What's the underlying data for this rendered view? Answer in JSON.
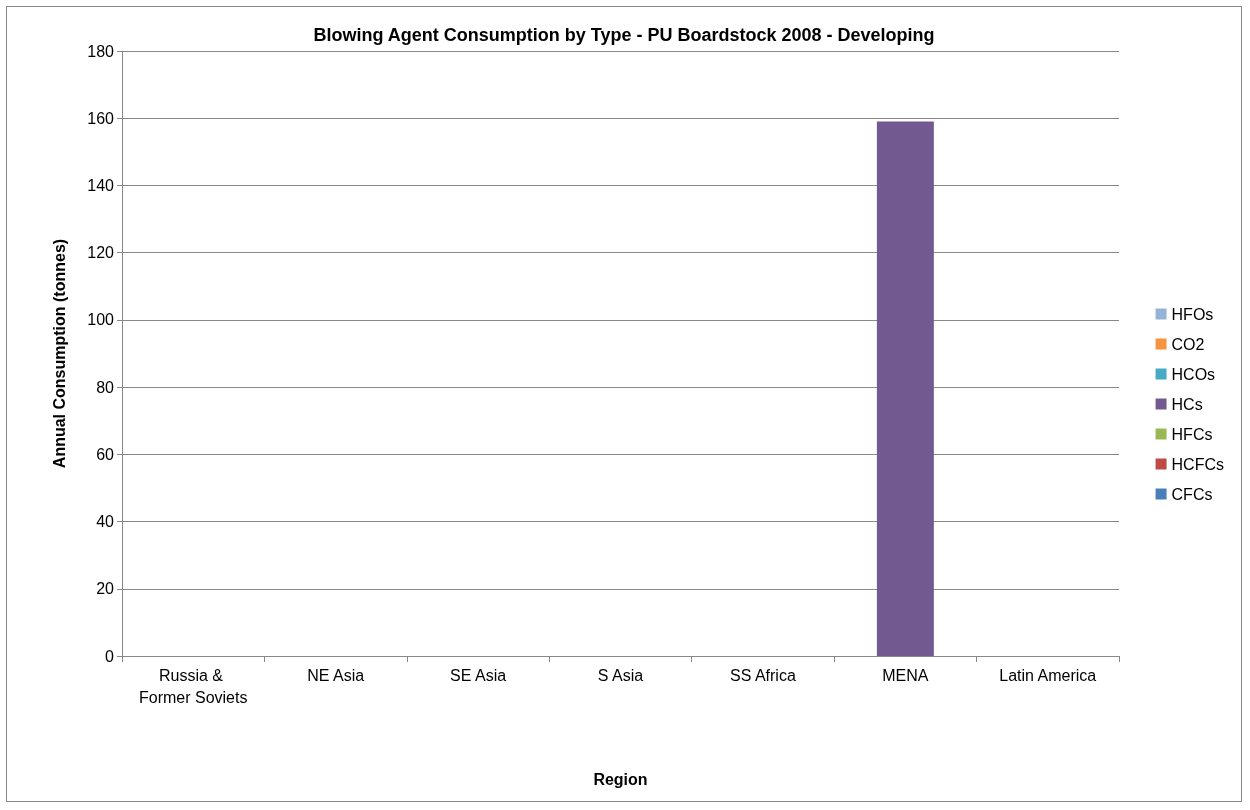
{
  "chart_data": {
    "type": "bar",
    "title": "Blowing Agent Consumption by Type - PU Boardstock 2008 - Developing",
    "xlabel": "Region",
    "ylabel": "Annual Consumption (tonnes)",
    "categories": [
      "Russia & Former Soviets",
      "NE Asia",
      "SE Asia",
      "S Asia",
      "SS Africa",
      "MENA",
      "Latin America"
    ],
    "stacked": true,
    "ylim": [
      0,
      180
    ],
    "yticks": [
      0,
      20,
      40,
      60,
      80,
      100,
      120,
      140,
      160,
      180
    ],
    "grid": "y",
    "legend": "right",
    "series": [
      {
        "name": "CFCs",
        "color": "#4a7ebb",
        "values": [
          0,
          0,
          0,
          0,
          0,
          0,
          0
        ]
      },
      {
        "name": "HCFCs",
        "color": "#be4b48",
        "values": [
          0,
          0,
          0,
          0,
          0,
          0,
          0
        ]
      },
      {
        "name": "HFCs",
        "color": "#98b954",
        "values": [
          0,
          0,
          0,
          0,
          0,
          0,
          0
        ]
      },
      {
        "name": "HCs",
        "color": "#72598f",
        "values": [
          0,
          0,
          0,
          0,
          0,
          159,
          0
        ]
      },
      {
        "name": "HCOs",
        "color": "#46aac5",
        "values": [
          0,
          0,
          0,
          0,
          0,
          0,
          0
        ]
      },
      {
        "name": "CO2",
        "color": "#f69240",
        "values": [
          0,
          0,
          0,
          0,
          0,
          0,
          0
        ]
      },
      {
        "name": "HFOs",
        "color": "#95b3d7",
        "values": [
          0,
          0,
          0,
          0,
          0,
          0,
          0
        ]
      }
    ]
  }
}
